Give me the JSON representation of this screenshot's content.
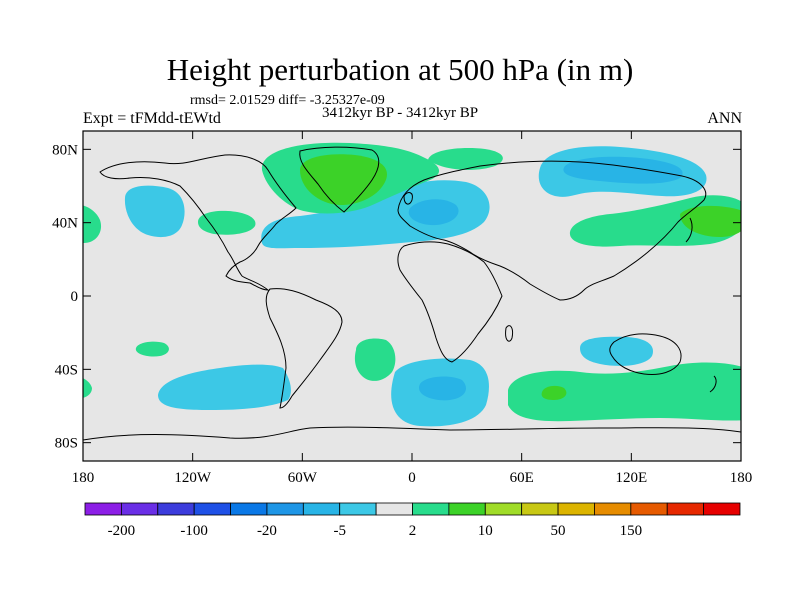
{
  "title": "Height perturbation at 500 hPa (in m)",
  "stats_line": "rmsd= 2.01529 diff= -3.25327e-09",
  "subtitle": "3412kyr BP - 3412kyr BP",
  "left_label": "Expt = tFMdd-tEWtd",
  "right_label": "ANN",
  "map": {
    "projection": "cylindrical-equidistant",
    "lon_range": [
      -180,
      180
    ],
    "lat_range": [
      -90,
      90
    ],
    "lat_ticks": [
      {
        "value": 80,
        "label": "80N"
      },
      {
        "value": 40,
        "label": "40N"
      },
      {
        "value": 0,
        "label": "0"
      },
      {
        "value": -40,
        "label": "40S"
      },
      {
        "value": -80,
        "label": "80S"
      }
    ],
    "lon_ticks": [
      {
        "value": -180,
        "label": "180"
      },
      {
        "value": -120,
        "label": "120W"
      },
      {
        "value": -60,
        "label": "60W"
      },
      {
        "value": 0,
        "label": "0"
      },
      {
        "value": 60,
        "label": "60E"
      },
      {
        "value": 120,
        "label": "120E"
      },
      {
        "value": 180,
        "label": "180"
      }
    ],
    "background_color": "#e6e6e6",
    "coastline_color": "#000000"
  },
  "colorbar": {
    "colors": [
      "#8c1ee6",
      "#6a2ee6",
      "#3c3cdc",
      "#1e50e6",
      "#0a78e6",
      "#1e96e6",
      "#28b4e6",
      "#3cc8e6",
      "#e6e6e6",
      "#28dc8c",
      "#3cd228",
      "#a0dc28",
      "#c8c814",
      "#dcb400",
      "#e68c00",
      "#e65a00",
      "#e62800",
      "#e60000"
    ],
    "labels": [
      {
        "after_box": 1,
        "text": "-200"
      },
      {
        "after_box": 3,
        "text": "-100"
      },
      {
        "after_box": 5,
        "text": "-20"
      },
      {
        "after_box": 7,
        "text": "-5"
      },
      {
        "after_box": 9,
        "text": "2"
      },
      {
        "after_box": 11,
        "text": "10"
      },
      {
        "after_box": 13,
        "text": "50"
      },
      {
        "after_box": 15,
        "text": "150"
      }
    ]
  }
}
